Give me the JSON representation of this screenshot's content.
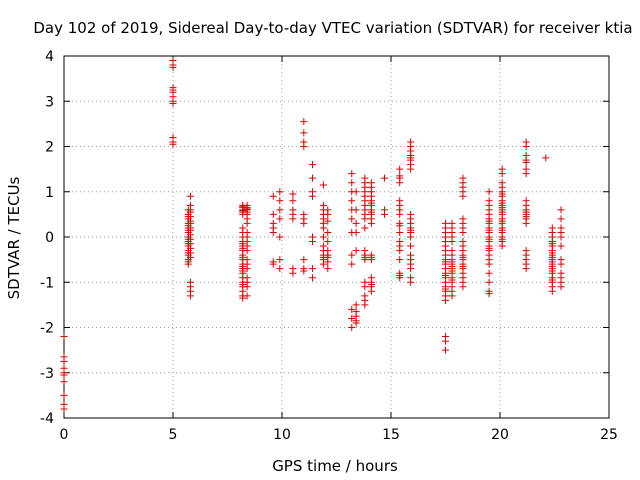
{
  "chart_data": {
    "type": "scatter",
    "title": "Day 102 of 2019, Sidereal Day-to-day VTEC variation (SDTVAR) for receiver ktia",
    "xlabel": "GPS time / hours",
    "ylabel": "SDTVAR / TECUs",
    "xlim": [
      0,
      25
    ],
    "ylim": [
      -4,
      4
    ],
    "xticks": [
      "0",
      "5",
      "10",
      "15",
      "20",
      "25"
    ],
    "yticks": [
      "-4",
      "-3",
      "-2",
      "-1",
      "0",
      "1",
      "2",
      "3",
      "4"
    ],
    "grid": true,
    "marker": "+",
    "color": "#e00000",
    "x": [
      0.0,
      0.0,
      0.0,
      0.0,
      0.0,
      0.0,
      0.0,
      0.0,
      0.0,
      0.0,
      5.0,
      5.0,
      5.0,
      5.0,
      5.0,
      5.0,
      5.0,
      5.0,
      5.0,
      5.0,
      5.0,
      5.0,
      5.7,
      5.7,
      5.7,
      5.7,
      5.7,
      5.7,
      5.7,
      5.7,
      5.7,
      5.7,
      5.7,
      5.7,
      5.7,
      5.7,
      5.7,
      5.7,
      5.7,
      5.7,
      5.7,
      5.7,
      5.8,
      5.8,
      5.8,
      5.8,
      5.8,
      5.8,
      5.8,
      5.8,
      5.8,
      5.8,
      5.8,
      5.8,
      5.8,
      5.8,
      5.8,
      5.8,
      5.8,
      5.8,
      5.8,
      8.2,
      8.2,
      8.2,
      8.2,
      8.2,
      8.2,
      8.2,
      8.2,
      8.2,
      8.2,
      8.2,
      8.2,
      8.2,
      8.2,
      8.2,
      8.2,
      8.2,
      8.2,
      8.2,
      8.2,
      8.2,
      8.2,
      8.2,
      8.2,
      8.2,
      8.2,
      8.2,
      8.2,
      8.2,
      8.2,
      8.4,
      8.4,
      8.4,
      8.4,
      8.4,
      8.4,
      8.4,
      8.4,
      8.4,
      8.4,
      8.4,
      8.4,
      8.4,
      8.4,
      8.4,
      8.4,
      8.4,
      8.4,
      8.4,
      8.4,
      9.6,
      9.6,
      9.6,
      9.6,
      9.6,
      9.6,
      9.6,
      9.9,
      9.9,
      9.9,
      9.9,
      9.9,
      9.9,
      9.9,
      10.5,
      10.5,
      10.5,
      10.5,
      10.5,
      10.5,
      10.5,
      11.0,
      11.0,
      11.0,
      11.0,
      11.0,
      11.0,
      11.0,
      11.0,
      11.0,
      11.0,
      11.4,
      11.4,
      11.4,
      11.4,
      11.4,
      11.4,
      11.4,
      11.4,
      11.9,
      11.9,
      11.9,
      11.9,
      11.9,
      11.9,
      11.9,
      11.9,
      11.9,
      11.9,
      11.9,
      11.9,
      11.9,
      11.9,
      12.1,
      12.1,
      12.1,
      12.1,
      12.1,
      12.1,
      12.1,
      12.1,
      12.1,
      12.1,
      13.2,
      13.2,
      13.2,
      13.2,
      13.2,
      13.2,
      13.2,
      13.2,
      13.2,
      13.2,
      13.2,
      13.2,
      13.4,
      13.4,
      13.4,
      13.4,
      13.4,
      13.4,
      13.4,
      13.4,
      13.4,
      13.4,
      13.8,
      13.8,
      13.8,
      13.8,
      13.8,
      13.8,
      13.8,
      13.8,
      13.8,
      13.8,
      13.8,
      13.8,
      13.8,
      13.8,
      13.8,
      13.8,
      13.8,
      13.8,
      13.8,
      13.8,
      14.1,
      14.1,
      14.1,
      14.1,
      14.1,
      14.1,
      14.1,
      14.1,
      14.1,
      14.1,
      14.1,
      14.1,
      14.1,
      14.1,
      14.1,
      14.1,
      14.1,
      14.1,
      14.1,
      14.1,
      14.7,
      14.7,
      14.7,
      15.4,
      15.4,
      15.4,
      15.4,
      15.4,
      15.4,
      15.4,
      15.4,
      15.4,
      15.4,
      15.4,
      15.4,
      15.4,
      15.4,
      15.4,
      15.4,
      15.4,
      15.4,
      15.9,
      15.9,
      15.9,
      15.9,
      15.9,
      15.9,
      15.9,
      15.9,
      15.9,
      15.9,
      15.9,
      15.9,
      15.9,
      15.9,
      15.9,
      15.9,
      15.9,
      15.9,
      15.9,
      15.9,
      15.9,
      15.9,
      17.5,
      17.5,
      17.5,
      17.5,
      17.5,
      17.5,
      17.5,
      17.5,
      17.5,
      17.5,
      17.5,
      17.5,
      17.5,
      17.5,
      17.5,
      17.5,
      17.5,
      17.5,
      17.5,
      17.5,
      17.5,
      17.5,
      17.5,
      17.5,
      17.8,
      17.8,
      17.8,
      17.8,
      17.8,
      17.8,
      17.8,
      17.8,
      17.8,
      17.8,
      17.8,
      17.8,
      17.8,
      17.8,
      17.8,
      17.8,
      17.8,
      17.8,
      17.8,
      17.8,
      18.3,
      18.3,
      18.3,
      18.3,
      18.3,
      18.3,
      18.3,
      18.3,
      18.3,
      18.3,
      18.3,
      18.3,
      18.3,
      18.3,
      18.3,
      18.3,
      18.3,
      18.3,
      18.3,
      18.3,
      18.3,
      18.3,
      19.5,
      19.5,
      19.5,
      19.5,
      19.5,
      19.5,
      19.5,
      19.5,
      19.5,
      19.5,
      19.5,
      19.5,
      19.5,
      19.5,
      19.5,
      19.5,
      19.5,
      19.5,
      19.5,
      19.5,
      19.5,
      19.5,
      19.5,
      19.5,
      20.1,
      20.1,
      20.1,
      20.1,
      20.1,
      20.1,
      20.1,
      20.1,
      20.1,
      20.1,
      20.1,
      20.1,
      20.1,
      20.1,
      20.1,
      20.1,
      20.1,
      20.1,
      20.1,
      20.1,
      20.1,
      20.1,
      20.1,
      20.1,
      21.2,
      21.2,
      21.2,
      21.2,
      21.2,
      21.2,
      21.2,
      21.2,
      21.2,
      21.2,
      21.2,
      21.2,
      21.2,
      21.2,
      21.2,
      21.2,
      21.2,
      21.2,
      21.2,
      21.2,
      22.1,
      22.4,
      22.4,
      22.4,
      22.4,
      22.4,
      22.4,
      22.4,
      22.4,
      22.4,
      22.4,
      22.4,
      22.4,
      22.4,
      22.4,
      22.4,
      22.4,
      22.4,
      22.4,
      22.4,
      22.4,
      22.4,
      22.4,
      22.8,
      22.8,
      22.8,
      22.8,
      22.8,
      22.8,
      22.8,
      22.8,
      22.8,
      22.8,
      22.8,
      22.8
    ],
    "y": [
      -2.2,
      -2.65,
      -2.9,
      -3.0,
      -3.05,
      -3.2,
      -3.5,
      -3.7,
      -3.8,
      -2.75,
      3.9,
      3.8,
      3.75,
      3.3,
      3.2,
      3.1,
      3.0,
      2.95,
      2.2,
      2.1,
      2.05,
      3.25,
      0.5,
      0.4,
      0.3,
      0.2,
      0.1,
      0.0,
      -0.1,
      -0.2,
      -0.3,
      -0.4,
      -0.5,
      -0.6,
      0.6,
      0.45,
      0.25,
      0.15,
      -0.05,
      -0.15,
      -0.35,
      -0.55,
      0.9,
      0.7,
      0.55,
      0.35,
      0.2,
      0.05,
      -0.05,
      -0.25,
      -0.45,
      -1.0,
      -1.2,
      -1.3,
      0.6,
      0.15,
      -0.15,
      0.45,
      0.3,
      -0.35,
      -1.1,
      0.7,
      0.65,
      0.6,
      0.55,
      0.5,
      0.2,
      0.0,
      -0.1,
      -0.2,
      -0.3,
      -0.4,
      -0.5,
      -0.6,
      -0.7,
      -0.8,
      -0.9,
      -1.0,
      -1.1,
      -1.2,
      -1.3,
      -1.35,
      0.1,
      -0.15,
      -0.45,
      -0.75,
      -1.05,
      0.68,
      0.58,
      -0.25,
      -0.65,
      0.7,
      0.65,
      0.6,
      0.5,
      0.3,
      0.1,
      -0.1,
      -0.3,
      -0.5,
      -0.7,
      -0.9,
      -1.1,
      -1.3,
      0.55,
      0.0,
      -0.6,
      -1.0,
      0.62,
      0.4,
      -0.2,
      0.9,
      0.5,
      0.2,
      0.1,
      -0.55,
      -0.6,
      0.3,
      1.0,
      0.8,
      0.6,
      0.4,
      -0.5,
      -0.7,
      0.0,
      0.95,
      0.8,
      0.6,
      0.4,
      -0.7,
      -0.8,
      0.5,
      2.55,
      2.3,
      2.1,
      2.0,
      0.5,
      0.4,
      0.3,
      -0.5,
      -0.7,
      -0.75,
      1.6,
      1.3,
      1.0,
      0.9,
      0.0,
      -0.1,
      -0.7,
      -0.9,
      1.15,
      0.7,
      0.6,
      0.4,
      0.2,
      0.0,
      -0.2,
      -0.4,
      -0.5,
      -0.6,
      0.3,
      -0.3,
      0.5,
      -0.45,
      0.6,
      0.35,
      0.1,
      -0.3,
      -0.45,
      -0.55,
      -0.7,
      0.5,
      -0.1,
      -0.4,
      1.4,
      1.2,
      1.0,
      0.8,
      0.6,
      0.4,
      0.1,
      -0.4,
      -0.6,
      -1.6,
      -1.8,
      -2.0,
      1.0,
      0.6,
      0.3,
      0.1,
      -0.3,
      -1.5,
      -1.65,
      -1.75,
      -1.85,
      -1.9,
      1.3,
      1.2,
      1.1,
      1.0,
      0.9,
      0.8,
      0.7,
      0.6,
      0.5,
      0.4,
      0.2,
      -0.3,
      -0.4,
      -0.5,
      -1.0,
      -1.1,
      -1.3,
      -1.4,
      -1.5,
      -0.45,
      1.2,
      1.1,
      1.0,
      0.9,
      0.8,
      0.7,
      0.6,
      0.5,
      0.4,
      0.3,
      -0.4,
      -0.5,
      -0.9,
      -1.0,
      -1.1,
      -1.2,
      -0.45,
      0.55,
      0.75,
      -1.05,
      1.3,
      0.6,
      0.5,
      1.5,
      1.3,
      1.2,
      0.8,
      0.6,
      0.5,
      0.3,
      0.1,
      -0.1,
      -0.3,
      -0.5,
      -0.8,
      -0.9,
      1.35,
      0.25,
      -0.2,
      -0.85,
      0.7,
      2.1,
      2.0,
      1.9,
      1.8,
      1.7,
      1.6,
      1.5,
      0.5,
      0.4,
      0.3,
      0.2,
      0.1,
      0.0,
      -0.2,
      -0.4,
      -0.6,
      -0.7,
      -0.9,
      -1.0,
      1.75,
      0.15,
      -0.5,
      0.3,
      0.2,
      0.1,
      0.0,
      -0.1,
      -0.3,
      -0.4,
      -0.5,
      -0.6,
      -0.7,
      -0.8,
      -0.9,
      -1.0,
      -1.1,
      -1.2,
      -1.3,
      -1.4,
      -2.2,
      -2.3,
      -2.5,
      -0.2,
      -0.55,
      -0.85,
      -1.15,
      0.3,
      0.1,
      -0.1,
      -0.3,
      -0.5,
      -0.6,
      -0.7,
      -0.8,
      -0.9,
      -1.0,
      -1.1,
      -1.2,
      -1.3,
      0.2,
      -0.4,
      -0.65,
      -0.95,
      -0.55,
      -0.75,
      0.0,
      1.3,
      1.2,
      1.1,
      1.0,
      0.9,
      0.4,
      0.3,
      0.1,
      -0.1,
      -0.2,
      -0.3,
      -0.4,
      -0.5,
      -0.6,
      -0.7,
      -0.8,
      -0.9,
      -1.0,
      -1.1,
      -0.45,
      -0.65,
      0.2,
      1.0,
      0.8,
      0.6,
      0.5,
      0.4,
      0.3,
      0.2,
      0.1,
      0.0,
      -0.1,
      -0.2,
      -0.3,
      -0.4,
      -0.5,
      -0.6,
      -0.8,
      -1.0,
      -1.2,
      -1.25,
      0.15,
      -0.05,
      -0.25,
      0.35,
      0.7,
      1.5,
      1.4,
      1.2,
      1.1,
      1.0,
      0.9,
      0.8,
      0.7,
      0.6,
      0.5,
      0.4,
      0.3,
      0.2,
      0.1,
      0.0,
      -0.1,
      -0.2,
      0.95,
      0.75,
      0.55,
      0.35,
      0.15,
      0.65,
      -0.05,
      2.1,
      2.0,
      1.8,
      1.7,
      1.5,
      1.4,
      0.8,
      0.7,
      0.6,
      0.5,
      0.4,
      0.3,
      -0.3,
      -0.4,
      -0.5,
      -0.6,
      -0.7,
      0.55,
      0.45,
      1.65,
      1.75,
      0.1,
      0.0,
      -0.1,
      -0.2,
      -0.3,
      -0.4,
      -0.5,
      -0.6,
      -0.7,
      -0.8,
      -0.9,
      -1.0,
      -1.1,
      -1.2,
      -0.15,
      -0.35,
      -0.55,
      -0.75,
      -0.95,
      0.2,
      -0.45,
      -0.65,
      0.6,
      0.4,
      0.2,
      0.0,
      -0.2,
      -0.5,
      -0.6,
      -0.8,
      -1.0,
      -1.1,
      0.1,
      -0.9
    ]
  }
}
